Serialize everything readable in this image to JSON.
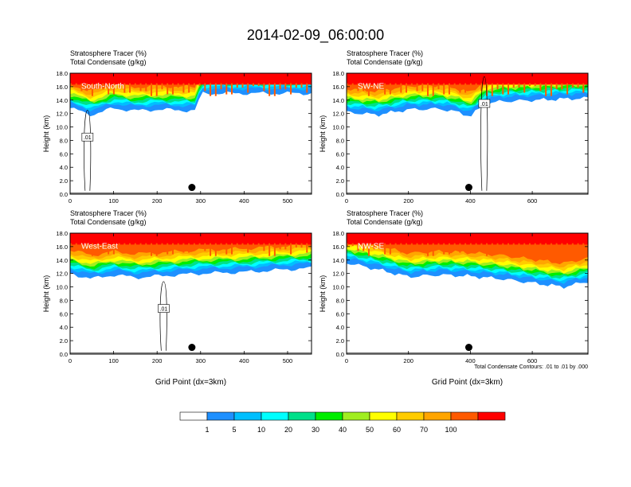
{
  "figure": {
    "title": "2014-02-09_06:00:00",
    "subtitle_line1": "Stratosphere Tracer   (%)",
    "subtitle_line2": "Total Condensate   (g/kg)",
    "ylabel": "Height (km)",
    "xlabel": "Grid Point (dx=3km)",
    "contour_note": "Total Condensate Contours: .01 to .01 by .000",
    "contour_label": ".01"
  },
  "colors": {
    "levels": [
      "#ffffff",
      "#1e90ff",
      "#00bfff",
      "#00ffff",
      "#00e08a",
      "#00ee00",
      "#a0ee20",
      "#ffff00",
      "#ffcc00",
      "#ffa500",
      "#ff5a00",
      "#ff0000"
    ],
    "land": "#ffffff"
  },
  "colorbar": {
    "labels": [
      "1",
      "5",
      "10",
      "20",
      "30",
      "40",
      "50",
      "60",
      "70",
      "100"
    ]
  },
  "chart_data": [
    {
      "type": "heatmap",
      "name_label": "South-North",
      "xlim": [
        0,
        555
      ],
      "ylim": [
        0,
        18
      ],
      "xticks": [
        0,
        100,
        200,
        300,
        400,
        500
      ],
      "yticks": [
        0,
        2,
        4,
        6,
        8,
        10,
        12,
        14,
        16,
        18
      ],
      "ytick_labels": [
        "0.0",
        "2.0",
        "4.0",
        "6.0",
        "8.0",
        "10.0",
        "12.0",
        "14.0",
        "16.0",
        "18.0"
      ],
      "tracer_base_km": [
        [
          0,
          12.8
        ],
        [
          50,
          11.8
        ],
        [
          100,
          12.8
        ],
        [
          150,
          12.4
        ],
        [
          200,
          12.6
        ],
        [
          250,
          12.5
        ],
        [
          290,
          12.4
        ],
        [
          300,
          15.0
        ],
        [
          555,
          15.0
        ]
      ],
      "marker": {
        "x": 280,
        "y": 1.0
      },
      "contour_label_pos": {
        "x": 40,
        "y": 8.5
      }
    },
    {
      "type": "heatmap",
      "name_label": "SW-NE",
      "xlim": [
        0,
        780
      ],
      "ylim": [
        0,
        18
      ],
      "xticks": [
        0,
        200,
        400,
        600
      ],
      "yticks": [
        0,
        2,
        4,
        6,
        8,
        10,
        12,
        14,
        16,
        18
      ],
      "ytick_labels": [
        "0.0",
        "2.0",
        "4.0",
        "6.0",
        "8.0",
        "10.0",
        "12.0",
        "14.0",
        "16.0",
        "18.0"
      ],
      "tracer_base_km": [
        [
          0,
          12.2
        ],
        [
          100,
          11.8
        ],
        [
          200,
          12.6
        ],
        [
          300,
          12.7
        ],
        [
          350,
          12.3
        ],
        [
          400,
          11.6
        ],
        [
          450,
          13.5
        ],
        [
          500,
          13.8
        ],
        [
          780,
          14.3
        ]
      ],
      "marker": {
        "x": 395,
        "y": 1.0
      },
      "contour_label_pos": {
        "x": 445,
        "y": 13.5
      }
    },
    {
      "type": "heatmap",
      "name_label": "West-East",
      "xlim": [
        0,
        555
      ],
      "ylim": [
        0,
        18
      ],
      "xticks": [
        0,
        100,
        200,
        300,
        400,
        500
      ],
      "yticks": [
        0,
        2,
        4,
        6,
        8,
        10,
        12,
        14,
        16,
        18
      ],
      "ytick_labels": [
        "0.0",
        "2.0",
        "4.0",
        "6.0",
        "8.0",
        "10.0",
        "12.0",
        "14.0",
        "16.0",
        "18.0"
      ],
      "tracer_base_km": [
        [
          0,
          12.0
        ],
        [
          50,
          11.2
        ],
        [
          100,
          11.8
        ],
        [
          150,
          11.4
        ],
        [
          200,
          11.6
        ],
        [
          250,
          11.8
        ],
        [
          300,
          12.0
        ],
        [
          400,
          12.2
        ],
        [
          500,
          12.6
        ],
        [
          555,
          12.8
        ]
      ],
      "marker": {
        "x": 280,
        "y": 1.0
      },
      "contour_label_pos": {
        "x": 215,
        "y": 6.8
      }
    },
    {
      "type": "heatmap",
      "name_label": "NW-SE",
      "xlim": [
        0,
        780
      ],
      "ylim": [
        0,
        18
      ],
      "xticks": [
        0,
        200,
        400,
        600
      ],
      "yticks": [
        0,
        2,
        4,
        6,
        8,
        10,
        12,
        14,
        16,
        18
      ],
      "ytick_labels": [
        "0.0",
        "2.0",
        "4.0",
        "6.0",
        "8.0",
        "10.0",
        "12.0",
        "14.0",
        "16.0",
        "18.0"
      ],
      "tracer_base_km": [
        [
          0,
          13.6
        ],
        [
          100,
          12.6
        ],
        [
          200,
          11.5
        ],
        [
          300,
          11.8
        ],
        [
          400,
          11.6
        ],
        [
          500,
          11.2
        ],
        [
          600,
          10.6
        ],
        [
          700,
          10.0
        ],
        [
          780,
          10.8
        ]
      ],
      "marker": {
        "x": 395,
        "y": 1.0
      },
      "contour_label_pos": {
        "x": 0,
        "y": 0
      }
    }
  ]
}
